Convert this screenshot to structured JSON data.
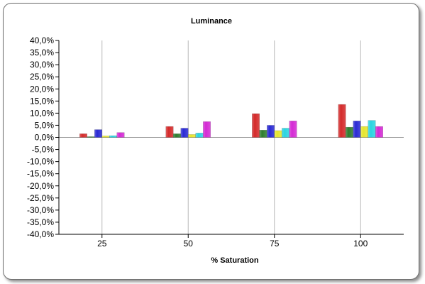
{
  "chart_data": {
    "type": "bar",
    "title": "Luminance",
    "xlabel": "% Saturation",
    "ylabel": "",
    "categories": [
      "25",
      "50",
      "75",
      "100"
    ],
    "ylim": [
      -40,
      40
    ],
    "ytick_step": 5,
    "ytick_labels": [
      "40,0%",
      "35,0%",
      "30,0%",
      "25,0%",
      "20,0%",
      "15,0%",
      "10,0%",
      "5,0%",
      "0,0%",
      "-5,0%",
      "-10,0%",
      "-15,0%",
      "-20,0%",
      "-25,0%",
      "-30,0%",
      "-35,0%",
      "-40,0%"
    ],
    "grid": true,
    "legend": "none",
    "series": [
      {
        "color": "#d42a2a",
        "values": [
          1.5,
          4.5,
          9.8,
          13.6
        ]
      },
      {
        "color": "#2e7d2e",
        "values": [
          0.3,
          1.5,
          3.0,
          4.2
        ]
      },
      {
        "color": "#2a2ad4",
        "values": [
          3.2,
          3.8,
          5.0,
          6.8
        ]
      },
      {
        "color": "#e6e62e",
        "values": [
          0.6,
          1.2,
          2.8,
          4.5
        ]
      },
      {
        "color": "#2ad4e0",
        "values": [
          0.7,
          1.8,
          3.8,
          7.0
        ]
      },
      {
        "color": "#d42ad4",
        "values": [
          2.0,
          6.5,
          6.8,
          4.5
        ]
      }
    ]
  }
}
